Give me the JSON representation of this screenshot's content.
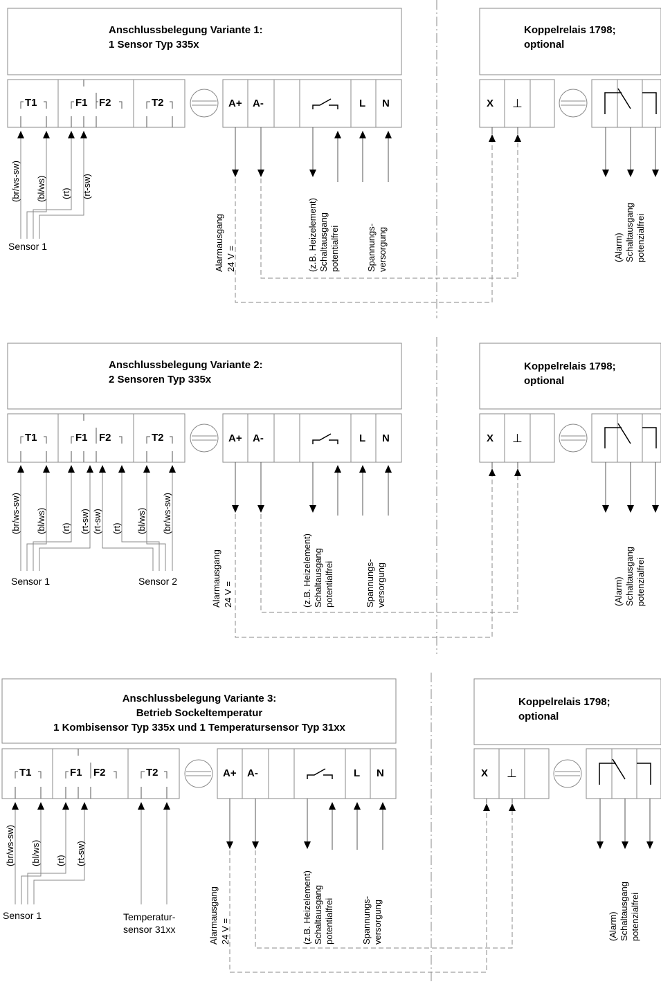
{
  "variants": [
    {
      "title_lines": [
        "Anschlussbelegung Variante 1:",
        "1 Sensor Typ 335x"
      ],
      "terminals": [
        "T1",
        "F1",
        "F2",
        "T2",
        "A+",
        "A-",
        "L",
        "N"
      ],
      "wires": [
        "(br/ws-sw)",
        "(bl/ws)",
        "(rt)",
        "(rt-sw)"
      ],
      "sensor_labels": [
        "Sensor 1"
      ],
      "output_labels": {
        "alarm": [
          "Alarmausgang",
          "24 V ="
        ],
        "switch": [
          "(z.B. Heizelement)",
          "Schaltausgang",
          "potentialfrei"
        ],
        "supply": [
          "Spannungs-",
          "versorgung"
        ]
      },
      "relay_title_lines": [
        "Koppelrelais 1798;",
        "optional"
      ],
      "relay_terminals": [
        "X",
        "⊥"
      ],
      "relay_output_lines": [
        "(Alarm)",
        "Schaltausgang",
        "potenzialfrei"
      ]
    },
    {
      "title_lines": [
        "Anschlussbelegung Variante 2:",
        "2 Sensoren Typ 335x"
      ],
      "terminals": [
        "T1",
        "F1",
        "F2",
        "T2",
        "A+",
        "A-",
        "L",
        "N"
      ],
      "wires": [
        "(br/ws-sw)",
        "(bl/ws)",
        "(rt)",
        "(rt-sw)",
        "(rt-sw)",
        "(rt)",
        "(bl/ws)",
        "(br/ws-sw)"
      ],
      "sensor_labels": [
        "Sensor 1",
        "Sensor 2"
      ],
      "output_labels": {
        "alarm": [
          "Alarmausgang",
          "24 V ="
        ],
        "switch": [
          "(z.B. Heizelement)",
          "Schaltausgang",
          "potentialfrei"
        ],
        "supply": [
          "Spannungs-",
          "versorgung"
        ]
      },
      "relay_title_lines": [
        "Koppelrelais 1798;",
        "optional"
      ],
      "relay_terminals": [
        "X",
        "⊥"
      ],
      "relay_output_lines": [
        "(Alarm)",
        "Schaltausgang",
        "potenzialfrei"
      ]
    },
    {
      "title_lines": [
        "Anschlussbelegung Variante 3:",
        "Betrieb Sockeltemperatur",
        "1 Kombisensor Typ 335x und 1 Temperatursensor Typ 31xx"
      ],
      "terminals": [
        "T1",
        "F1",
        "F2",
        "T2",
        "A+",
        "A-",
        "L",
        "N"
      ],
      "wires": [
        "(br/ws-sw)",
        "(bl/ws)",
        "(rt)",
        "(rt-sw)"
      ],
      "sensor_labels": [
        "Sensor 1",
        "Temperatur-",
        "sensor  31xx"
      ],
      "output_labels": {
        "alarm": [
          "Alarmausgang",
          "24 V ="
        ],
        "switch": [
          "(z.B. Heizelement)",
          "Schaltausgang",
          "potentialfrei"
        ],
        "supply": [
          "Spannungs-",
          "versorgung"
        ]
      },
      "relay_title_lines": [
        "Koppelrelais 1798;",
        "optional"
      ],
      "relay_terminals": [
        "X",
        "⊥"
      ],
      "relay_output_lines": [
        "(Alarm)",
        "Schaltausgang",
        "potenzialfrei"
      ]
    }
  ]
}
